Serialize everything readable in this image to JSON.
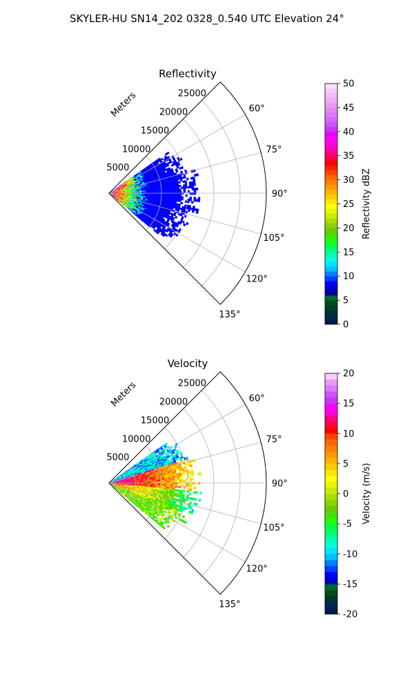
{
  "figure": {
    "suptitle": "SKYLER-HU  SN14_202  0328_0.540 UTC Elevation 24°"
  },
  "chart_data": [
    {
      "type": "heatmap",
      "projection": "polar-sector",
      "title": "Reflectivity",
      "range_label": "Meters",
      "range_ticks": [
        5000,
        10000,
        15000,
        20000,
        25000
      ],
      "range_max": 30000,
      "azimuth_range_deg": [
        45,
        135
      ],
      "azimuth_ticks_deg": [
        60,
        75,
        90,
        105,
        120,
        135
      ],
      "azimuth_tick_labels": [
        "60°",
        "75°",
        "90°",
        "105°",
        "120°",
        "135°"
      ],
      "grid": true,
      "colorbar": {
        "label": "Reflectivity dBZ",
        "vmin": 0,
        "vmax": 50,
        "ticks": [
          0,
          5,
          10,
          15,
          20,
          25,
          30,
          35,
          40,
          45,
          50
        ],
        "colors": [
          "#001a4d",
          "#00264d",
          "#003333",
          "#00402a",
          "#004d1a",
          "#006633",
          "#000099",
          "#0000cc",
          "#0000ff",
          "#0040ff",
          "#0080ff",
          "#00bfff",
          "#00e5ff",
          "#00ffdd",
          "#00ffaa",
          "#00ff77",
          "#00ff44",
          "#22ff00",
          "#44e000",
          "#66cc00",
          "#88d400",
          "#a8e000",
          "#c8ec00",
          "#e6f500",
          "#ffff00",
          "#ffe600",
          "#ffcc00",
          "#ffb300",
          "#ff9900",
          "#ff7f00",
          "#ff6600",
          "#ff4400",
          "#ff2200",
          "#ff0000",
          "#ff0040",
          "#ff0080",
          "#ff00b3",
          "#ff00e0",
          "#ff00ff",
          "#e600ff",
          "#cc33ff",
          "#cc55ff",
          "#d666ff",
          "#dd77ff",
          "#e388f0",
          "#e899f2",
          "#eeaaf5",
          "#f2bbf7",
          "#f6ccfa",
          "#f9ddfc"
        ]
      },
      "echo_extent": {
        "azimuth_deg": [
          55,
          130
        ],
        "range_m": [
          0,
          18000
        ]
      }
    },
    {
      "type": "heatmap",
      "projection": "polar-sector",
      "title": "Velocity",
      "range_label": "Meters",
      "range_ticks": [
        5000,
        10000,
        15000,
        20000,
        25000
      ],
      "range_max": 30000,
      "azimuth_range_deg": [
        45,
        135
      ],
      "azimuth_ticks_deg": [
        60,
        75,
        90,
        105,
        120,
        135
      ],
      "azimuth_tick_labels": [
        "60°",
        "75°",
        "90°",
        "105°",
        "120°",
        "135°"
      ],
      "grid": true,
      "colorbar": {
        "label": "Velocity (m/s)",
        "vmin": -20,
        "vmax": 20,
        "ticks": [
          -20,
          -15,
          -10,
          -5,
          0,
          5,
          10,
          15,
          20
        ],
        "colors": [
          "#001a4d",
          "#00264d",
          "#003333",
          "#004d1a",
          "#006633",
          "#0000cc",
          "#0000ff",
          "#0040ff",
          "#0080ff",
          "#00bfff",
          "#00e5ff",
          "#00ffdd",
          "#00ffaa",
          "#00ff77",
          "#00ff44",
          "#22ff00",
          "#44e000",
          "#66cc00",
          "#88d400",
          "#a8e000",
          "#c8ec00",
          "#e6f500",
          "#ffff00",
          "#ffe600",
          "#ffcc00",
          "#ffb300",
          "#ff9900",
          "#ff7f00",
          "#ff6600",
          "#ff4400",
          "#ff0000",
          "#ff0040",
          "#ff0080",
          "#ff00e0",
          "#ff00ff",
          "#cc33ff",
          "#cc55ff",
          "#dd77ff",
          "#e899f2",
          "#f6ccfa"
        ]
      },
      "echo_extent": {
        "azimuth_deg": [
          55,
          130
        ],
        "range_m": [
          0,
          18000
        ]
      }
    }
  ]
}
